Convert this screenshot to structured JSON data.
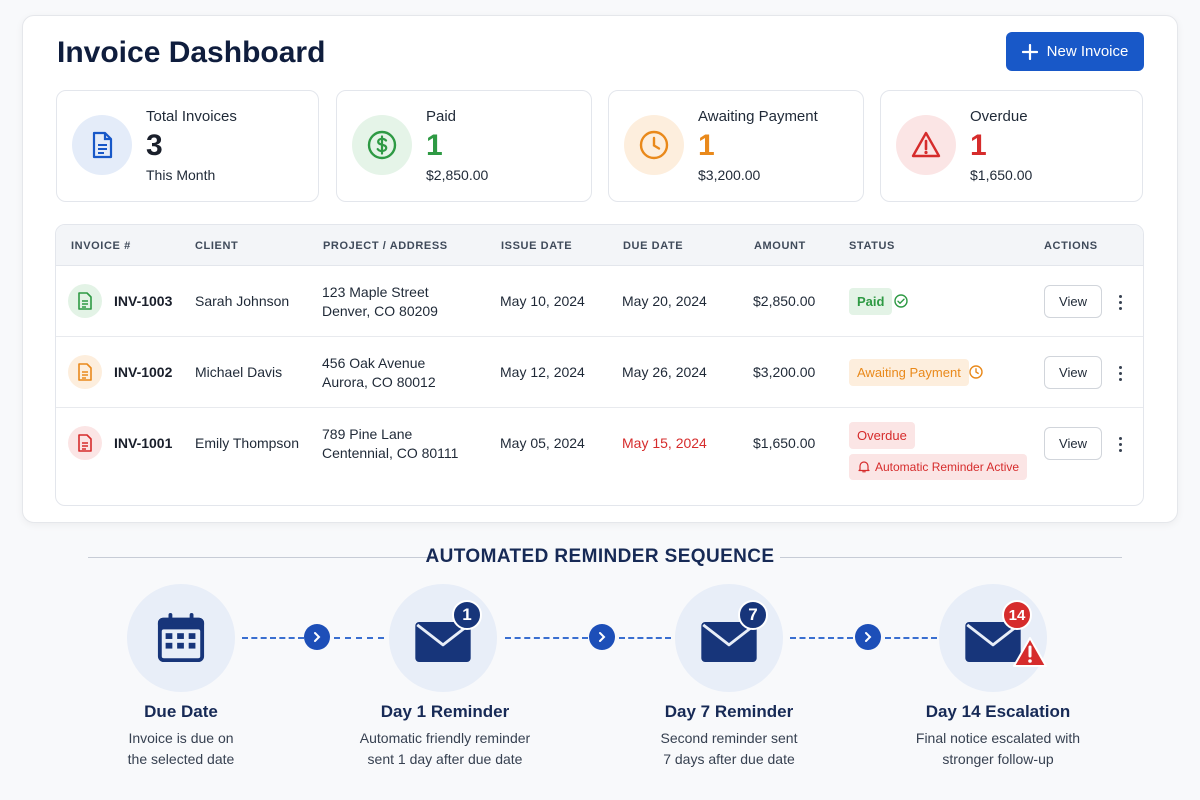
{
  "header": {
    "title": "Invoice Dashboard",
    "new_invoice_label": "New Invoice"
  },
  "stats": [
    {
      "label": "Total Invoices",
      "value": "3",
      "sub": "This Month",
      "icon": "document-icon",
      "color": "#1858c8"
    },
    {
      "label": "Paid",
      "value": "1",
      "sub": "$2,850.00",
      "icon": "dollar-icon",
      "color": "#2e9a44"
    },
    {
      "label": "Awaiting Payment",
      "value": "1",
      "sub": "$3,200.00",
      "icon": "clock-icon",
      "color": "#e9891b"
    },
    {
      "label": "Overdue",
      "value": "1",
      "sub": "$1,650.00",
      "icon": "warning-icon",
      "color": "#d62c2c"
    }
  ],
  "table": {
    "columns": [
      "INVOICE #",
      "CLIENT",
      "PROJECT / ADDRESS",
      "ISSUE DATE",
      "DUE DATE",
      "AMOUNT",
      "STATUS",
      "ACTIONS"
    ],
    "view_label": "View",
    "rows": [
      {
        "invoice": "INV-1003",
        "client": "Sarah Johnson",
        "address_line1": "123 Maple Street",
        "address_line2": "Denver, CO 80209",
        "issue_date": "May 10, 2024",
        "due_date": "May 20, 2024",
        "amount": "$2,850.00",
        "status": "Paid",
        "status_color": "#2e9a44"
      },
      {
        "invoice": "INV-1002",
        "client": "Michael Davis",
        "address_line1": "456 Oak Avenue",
        "address_line2": "Aurora, CO 80012",
        "issue_date": "May 12, 2024",
        "due_date": "May 26, 2024",
        "amount": "$3,200.00",
        "status": "Awaiting Payment",
        "status_color": "#e9891b"
      },
      {
        "invoice": "INV-1001",
        "client": "Emily Thompson",
        "address_line1": "789 Pine Lane",
        "address_line2": "Centennial, CO 80111",
        "issue_date": "May 05, 2024",
        "due_date": "May 15, 2024",
        "amount": "$1,650.00",
        "status": "Overdue",
        "status_color": "#d62c2c",
        "reminder": "Automatic Reminder Active"
      }
    ]
  },
  "sequence": {
    "title": "AUTOMATED REMINDER SEQUENCE",
    "steps": [
      {
        "title": "Due Date",
        "desc_line1": "Invoice is due on",
        "desc_line2": "the selected date",
        "icon": "calendar-icon"
      },
      {
        "title": "Day 1 Reminder",
        "desc_line1": "Automatic friendly reminder",
        "desc_line2": "sent 1 day after due date",
        "icon": "envelope-icon",
        "badge": "1"
      },
      {
        "title": "Day 7 Reminder",
        "desc_line1": "Second reminder sent",
        "desc_line2": "7 days after due date",
        "icon": "envelope-icon",
        "badge": "7"
      },
      {
        "title": "Day 14 Escalation",
        "desc_line1": "Final notice escalated with",
        "desc_line2": "stronger follow-up",
        "icon": "envelope-warning-icon",
        "badge": "14"
      }
    ]
  },
  "colors": {
    "primary": "#1858c8",
    "navy": "#172a56",
    "paid": "#2e9a44",
    "awaiting": "#e9891b",
    "overdue": "#d62c2c"
  }
}
